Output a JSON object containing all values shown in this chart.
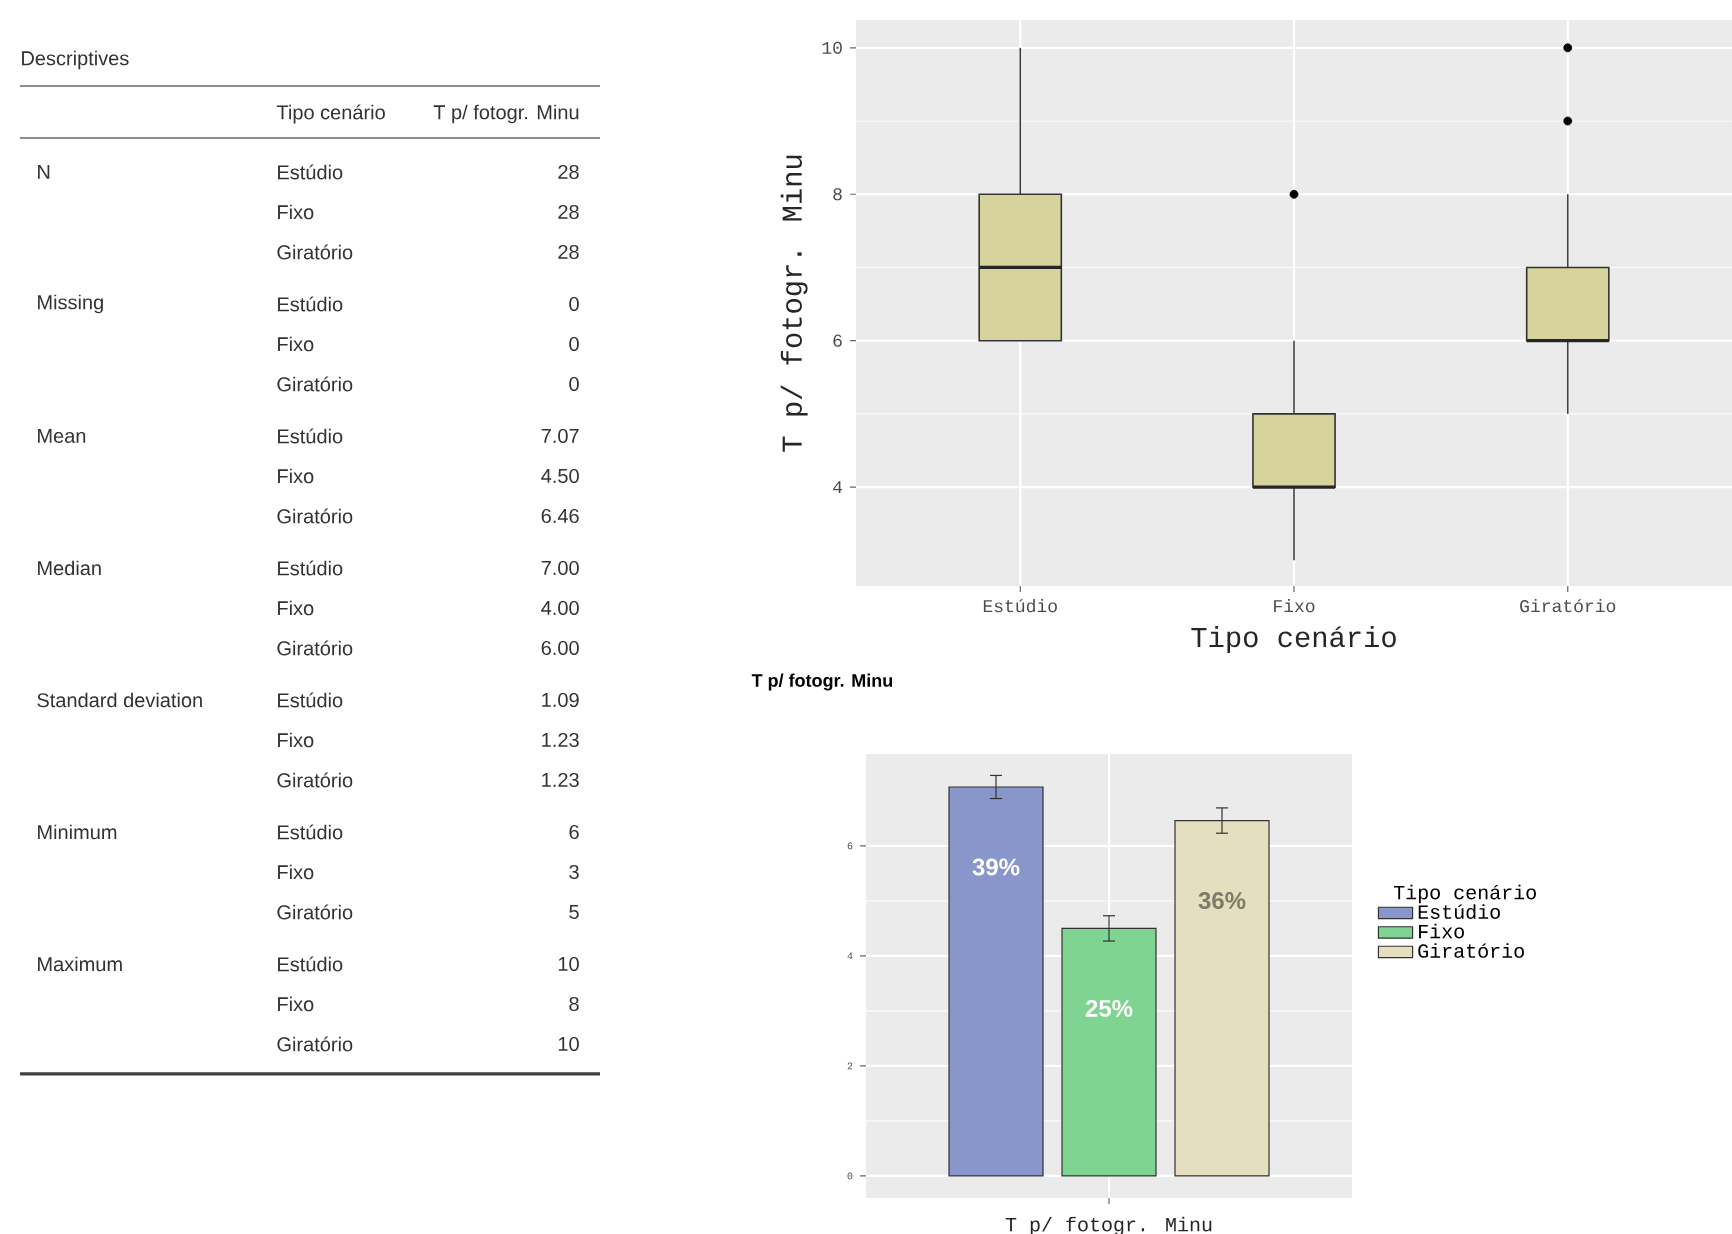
{
  "chart_data": [
    {
      "type": "other",
      "title": "Descriptives",
      "annotations": [
        "Tipo cenário",
        "T p/ fotogr. Minu",
        "N",
        "Estúdio",
        "28",
        "Fixo",
        "28",
        "Giratório",
        "28",
        "Missing",
        "Estúdio",
        "0",
        "Fixo",
        "0",
        "Giratório",
        "0",
        "Mean",
        "Estúdio",
        "7.07",
        "Fixo",
        "4.50",
        "Giratório",
        "6.46",
        "Median",
        "Estúdio",
        "7.00",
        "Fixo",
        "4.00",
        "Giratório",
        "6.00",
        "Standard deviation",
        "Estúdio",
        "1.09",
        "Fixo",
        "1.23",
        "Giratório",
        "1.23",
        "Minimum",
        "Estúdio",
        "6",
        "Fixo",
        "3",
        "Giratório",
        "5",
        "Maximum",
        "Estúdio",
        "10",
        "Fixo",
        "8",
        "Giratório",
        "10"
      ]
    },
    {
      "type": "box",
      "xlabel": "Tipo cenário",
      "ylabel": "T p/ fotogr. Minu",
      "categories": [
        "Estúdio",
        "Fixo",
        "Giratório"
      ],
      "color": "#d6d39c",
      "boxes": [
        {
          "low": 6,
          "q1": 6,
          "median": 7,
          "q3": 8,
          "high": 10
        },
        {
          "low": 3,
          "q1": 4,
          "median": 4,
          "q3": 5,
          "high": 6,
          "outliers": [
            8
          ]
        },
        {
          "low": 5,
          "q1": 6,
          "median": 6,
          "q3": 7,
          "high": 8,
          "outliers": [
            9,
            10
          ]
        }
      ],
      "ylim": [
        2.65,
        10.38
      ],
      "yticks": [
        4,
        6,
        8,
        10
      ],
      "grid": true
    },
    {
      "type": "bar",
      "title": "T p/ fotogr. Minu",
      "xlabel": "T p/ fotogr. Minu",
      "categories": [
        null
      ],
      "legend_title": "Tipo cenário",
      "legend": "right",
      "annotations": [
        "39%",
        "25%",
        "36%"
      ],
      "series": [
        {
          "name": "Estúdio",
          "color": "#8896cc",
          "values": [
            7.07
          ],
          "errors": [
            0.21
          ]
        },
        {
          "name": "Fixo",
          "color": "#7fd491",
          "values": [
            4.5
          ],
          "errors": [
            0.23
          ]
        },
        {
          "name": "Giratório",
          "color": "#e3dfbf",
          "values": [
            6.46
          ],
          "errors": [
            0.23
          ]
        }
      ],
      "ylim": [
        -0.4,
        7.67
      ],
      "yticks": [
        0,
        2,
        4,
        6
      ],
      "grid": true
    }
  ]
}
